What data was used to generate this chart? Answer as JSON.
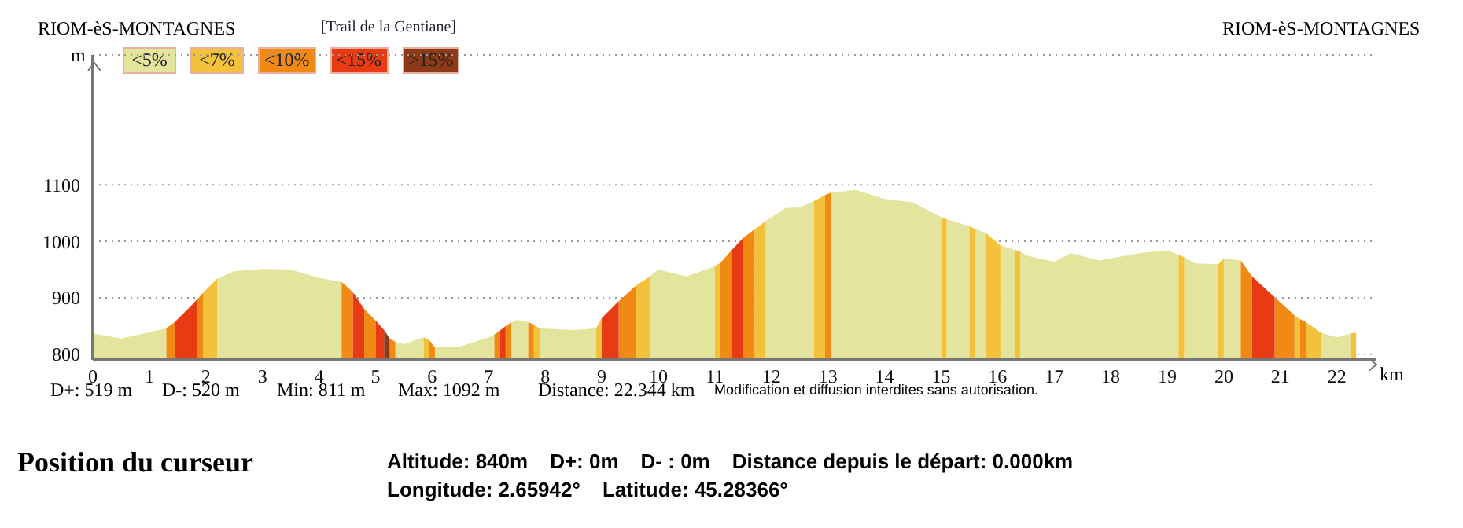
{
  "chart_data": {
    "type": "area",
    "title": "RIOM-èS-MONTAGNES",
    "subtitle": "[Trail de la Gentiane]",
    "xlabel": "km",
    "ylabel": "m",
    "annotations": [
      "RIOM-èS-MONTAGNES",
      "D+: 519 m",
      "D-: 520 m",
      "Min: 811 m",
      "Max: 1092 m",
      "Distance: 22.344 km",
      "Modification et diffusion interdites sans autorisation.",
      "Position du curseur",
      "Altitude: 840m",
      "D+: 0m",
      "D- : 0m",
      "Distance depuis le départ: 0.000km",
      "Longitude: 2.65942°",
      "Latitude: 45.28366°"
    ],
    "xlim": [
      0,
      22.7
    ],
    "xticks": [
      0,
      1,
      2,
      3,
      4,
      5,
      6,
      7,
      8,
      9,
      10,
      11,
      12,
      13,
      14,
      15,
      16,
      17,
      18,
      19,
      20,
      21,
      22
    ],
    "ylim": [
      790,
      1330
    ],
    "yticks": [
      800,
      900,
      1000,
      1100
    ],
    "grid": "y",
    "legend": "top left",
    "series": [
      {
        "name": "<5%",
        "color": "#e4e59d",
        "x": [
          0,
          0.5,
          1,
          1.3,
          1.7,
          2.2,
          2.5,
          3,
          3.5,
          4,
          4.4,
          5,
          5.35,
          5.5,
          5.85,
          5.9,
          6.05,
          6.5,
          7,
          7.1,
          7.2,
          7.4,
          7.5,
          7.7,
          7.8,
          7.9,
          8.5,
          8.9,
          9.5,
          9.85,
          10,
          10.5,
          11,
          11.5,
          11.9,
          12.25,
          12.5,
          12.75,
          12.9,
          13.05,
          13.5,
          14,
          14.5,
          15,
          15.05,
          15.1,
          15.5,
          15.55,
          15.6,
          15.8,
          15.9,
          16.05,
          16.3,
          16.35,
          16.4,
          16.5,
          17,
          17.3,
          17.8,
          18.5,
          19,
          19.2,
          19.25,
          19.3,
          19.5,
          19.9,
          19.95,
          20,
          20.3,
          21,
          21.72,
          22,
          22.25
        ],
        "values": [
          837,
          828,
          839,
          846,
          null,
          934,
          947,
          951,
          950,
          935,
          928,
          null,
          822,
          818,
          830,
          null,
          812,
          814,
          830,
          835,
          null,
          856,
          861,
          857,
          null,
          846,
          843,
          846,
          null,
          938,
          950,
          938,
          956,
          null,
          1036,
          1059,
          1060,
          1071,
          null,
          1086,
          1091,
          1075,
          1069,
          1043,
          null,
          1039,
          1027,
          null,
          1022,
          1014,
          null,
          993,
          985,
          null,
          982,
          975,
          964,
          979,
          966,
          979,
          984,
          976,
          null,
          972,
          961,
          959,
          null,
          970,
          966,
          null,
          838,
          830,
          837
        ]
      },
      {
        "name": "<7%",
        "color": "#f4c23a",
        "x": [
          1.95,
          2.2,
          3,
          5.85,
          5.95,
          7,
          7.8,
          7.9,
          8.4,
          8.9,
          9,
          9.3,
          9.6,
          9.85,
          10.5,
          11,
          11.1,
          11.4,
          11.7,
          11.9,
          12.3,
          12.75,
          12.95,
          14,
          15,
          15.1,
          15.3,
          15.5,
          15.6,
          15.7,
          15.8,
          16.05,
          16.2,
          16.3,
          16.4,
          18,
          19.2,
          19.3,
          19.6,
          19.9,
          20,
          20.6,
          21.25,
          21.35,
          21.4,
          21.45,
          21.72,
          22,
          22.25,
          22.34
        ],
        "values": [
          909,
          934,
          null,
          830,
          825,
          null,
          852,
          846,
          null,
          846,
          864,
          null,
          921,
          938,
          null,
          956,
          962,
          null,
          1021,
          1036,
          null,
          1071,
          1082,
          null,
          1043,
          1039,
          null,
          1027,
          1022,
          null,
          1014,
          993,
          null,
          985,
          982,
          null,
          976,
          972,
          null,
          959,
          970,
          null,
          869,
          862,
          null,
          857,
          838,
          null,
          837,
          838
        ]
      },
      {
        "name": "<10%",
        "color": "#f18a14",
        "x": [
          1.3,
          1.45,
          1.6,
          1.85,
          1.95,
          3,
          4.4,
          4.6,
          4.7,
          4.8,
          5,
          5.1,
          5.25,
          5.35,
          5.6,
          5.95,
          6.05,
          6.5,
          7.1,
          7.2,
          7.25,
          7.3,
          7.4,
          7.5,
          7.7,
          7.8,
          8.5,
          9.3,
          9.6,
          10.5,
          11.1,
          11.3,
          11.4,
          11.5,
          11.7,
          12.5,
          12.95,
          13.05,
          17,
          20.3,
          20.5,
          20.7,
          20.9,
          21.25,
          21.3,
          21.35,
          21.45
        ],
        "values": [
          846,
          857,
          null,
          898,
          909,
          null,
          928,
          910,
          null,
          880,
          860,
          null,
          828,
          822,
          null,
          825,
          812,
          null,
          835,
          842,
          null,
          850,
          856,
          null,
          857,
          852,
          null,
          894,
          921,
          null,
          962,
          985,
          null,
          1006,
          1021,
          null,
          1082,
          1086,
          null,
          966,
          938,
          null,
          901,
          869,
          null,
          862,
          857
        ]
      },
      {
        "name": "<15%",
        "color": "#e93b13",
        "x": [
          1.45,
          1.75,
          1.85,
          3,
          4.6,
          4.8,
          4.9,
          5,
          5.15,
          6,
          7.2,
          7.3,
          8,
          9,
          9.3,
          10,
          11.3,
          11.5,
          15,
          20.5,
          20.9
        ],
        "values": [
          857,
          887,
          898,
          null,
          910,
          880,
          null,
          860,
          843,
          null,
          842,
          850,
          null,
          864,
          894,
          null,
          985,
          1006,
          null,
          938,
          901
        ]
      },
      {
        "name": ">15%",
        "color": "#8c3a17",
        "x": [
          5.15,
          5.25
        ],
        "values": [
          843,
          828
        ]
      }
    ]
  }
}
